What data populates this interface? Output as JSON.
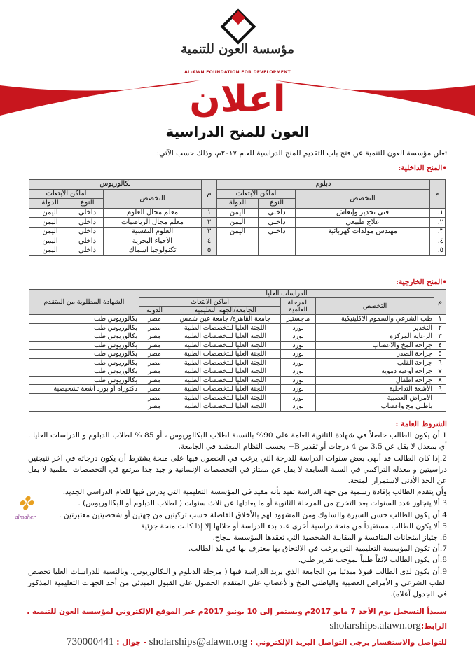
{
  "header": {
    "logo_text": "العون",
    "org_name_ar": "مؤسسة العون للتنمية",
    "org_name_en": "AL-AWN FOUNDATION FOR DEVELOPMENT",
    "title": "اعلان",
    "subtitle": "العون للمنح الدراسية",
    "brand_color": "#c8161e"
  },
  "intro": "تعلن مؤسسة العون للتنمية عن فتح باب التقديم للمنح الدراسية للعام ٢٠١٧م، وذلك حسب الآتي:",
  "domestic": {
    "heading": "•المنح الداخلية:",
    "diploma": {
      "title": "دبلوم",
      "col_m": "م",
      "col_major": "التخصص",
      "col_places": "أماكن الابتعاث",
      "col_type": "النوع",
      "col_country": "الدولة",
      "rows": [
        [
          "١.",
          "فني تخدير وإنعاش",
          "داخلي",
          "اليمن"
        ],
        [
          "٢.",
          "علاج طبيعي",
          "داخلي",
          "اليمن"
        ],
        [
          "٣.",
          "مهندس مولدات كهربائية",
          "داخلي",
          "اليمن"
        ],
        [
          "٤.",
          "",
          "",
          ""
        ],
        [
          "٥.",
          "",
          "",
          ""
        ]
      ]
    },
    "bachelor": {
      "title": "بكالوريوس",
      "col_m": "م",
      "col_major": "التخصص",
      "col_places": "أماكن الابتعاث",
      "col_type": "النوع",
      "col_country": "الدولة",
      "rows": [
        [
          "١",
          "معلم مجال العلوم",
          "داخلي",
          "اليمن"
        ],
        [
          "٢",
          "معلم مجال الرياضيات",
          "داخلي",
          "اليمن"
        ],
        [
          "٣",
          "العلوم النفسية",
          "داخلي",
          "اليمن"
        ],
        [
          "٤",
          "الأحياء البحرية",
          "داخلي",
          "اليمن"
        ],
        [
          "٥",
          "تكنولوجيا أسماك",
          "داخلي",
          "اليمن"
        ]
      ]
    }
  },
  "foreign": {
    "heading": "•المنح الخارجية:",
    "col_m": "م",
    "col_group": "الدراسات العليا",
    "col_major": "التخصص",
    "col_stage": "المرحلة العلمية",
    "col_places": "أماكن الابتعاث",
    "col_university": "الجامعة/الجهة التعليمية",
    "col_country": "الدولة",
    "col_cert": "الشهادة المطلوبة من المتقدم",
    "rows": [
      [
        "١",
        "طب الشرعي والسموم الاكلينيكية",
        "ماجستير",
        "جامعة القاهرة/ جامعة عين شمس",
        "مصر",
        "بكالوريوس طب"
      ],
      [
        "٢",
        "التخدير",
        "بورد",
        "اللجنة العليا للتخصصات الطبية",
        "مصر",
        "بكالوريوس طب"
      ],
      [
        "٣",
        "الرعاية المركزة",
        "بورد",
        "اللجنة العليا للتخصصات الطبية",
        "مصر",
        "بكالوريوس طب"
      ],
      [
        "٤",
        "جراحة المخ والاعصاب",
        "بورد",
        "اللجنة العليا للتخصصات الطبية",
        "مصر",
        "بكالوريوس طب"
      ],
      [
        "٥",
        "جراحة الصدر",
        "بورد",
        "اللجنة العليا للتخصصات الطبية",
        "مصر",
        "بكالوريوس طب"
      ],
      [
        "٦",
        "جراحة القلب",
        "بورد",
        "اللجنة العليا للتخصصات الطبية",
        "مصر",
        "بكالوريوس طب"
      ],
      [
        "٧",
        "جراحة أوعية دموية",
        "بورد",
        "اللجنة العليا للتخصصات الطبية",
        "مصر",
        "بكالوريوس طب"
      ],
      [
        "٨",
        "جراحة أطفال",
        "بورد",
        "اللجنة العليا للتخصصات الطبية",
        "مصر",
        "بكالوريوس طب"
      ],
      [
        "٩",
        "الأشعة التداخلية",
        "بورد",
        "اللجنة العليا للتخصصات الطبية",
        "مصر",
        "دكتوراه أو بورد أشعة تشخيصية"
      ],
      [
        "",
        "الأمراض العصبية",
        "بورد",
        "اللجنة العليا للتخصصات الطبية",
        "مصر",
        ""
      ],
      [
        "",
        "باطني مخ وأعصاب",
        "بورد",
        "اللجنة العليا للتخصصات الطبية",
        "مصر",
        ""
      ]
    ]
  },
  "conditions": {
    "heading": "الشروط العامة :",
    "items": [
      "1.أن يكون الطالب حاصلاً في شهادة الثانوية العامة على 90% بالنسبة لطلاب البكالوريوس ، أو 85 % لطلاب الدبلوم و الدراسات العليا . أي بمعدل لا يقل عن 3.5 من 4 درجات أو تقدير B+ بحسب النظام المعتمد في الجامعة.",
      "2.إذا كان الطالب قد أنهى بعض سنوات الدراسة للدرجة التي يرغب في الحصول فيها على منحة يشترط أن يكون درجاته في آخر نتيجتين دراسيتين و معدله التراكمي في السنة السابقة لا يقل عن ممتاز في التخصصات الإنسانية و جيد جدا مرتفع في التخصصات العلمية لا يقل عن الحد الأدنى لاستمرار المنحة.",
      "وأن يتقدم الطالب بإفادة رسمية من جهة الدراسة تفيد بأنه مقيد في المؤسسة التعليمية التي يدرس فيها للعام الدراسي الجديد.",
      "3.ألا يتجاوز عدد السنوات بعد التخرج من المرحلة الثانوية أو ما يعادلها عن ثلاث سنوات ( لطلاب الدبلوم أو البكالوريوس) .",
      "4.أن يكون الطالب حسن السيرة والسلوك ومن المشهود لهم بالأخلاق الفاضلة حسب تزكيتين من جهتين أو شخصيتين معتبرتين .",
      "5.ألا يكون الطالب مستفيداً من منحة دراسية أخرى عند بدء الدراسة أو خلالها إلا إذا كانت منحة جزئية",
      "6.اجتياز امتحانات المنافسة و المقابلة الشخصية التي تعقدها المؤسسة بنجاح.",
      "7.أن تكون المؤسسة التعليمية التي يرغب في الالتحاق بها معترف بها في بلد الطالب.",
      "8.أن يكون الطالب لائقاً طبياً بموجب تقرير طبي.",
      "9.أن يكون لدى الطالب قبولا مبدئيا من الجامعة الذي يريد الدراسة فيها ( مرحلة الدبلوم و البكالوريوس، وبالنسبة للدراسات العليا تخصص الطب الشرعي و الأمراض العصبية والباطني المخ والأعصاب على المتقدم الحصول على القبول المبدئي من أحد الجهات التعليمية المذكور في الجدول أعلاه)."
    ]
  },
  "footer": {
    "registration": "سيبدأ التسجيل يوم الأحد 7 مايو 2017م ويستمر إلى 10 يونيو 2017م عبر الموقع الإلكتروني لمؤسسة العون للتنمية .",
    "link_label": "الرابط:",
    "link": "sholarships.alawn.org",
    "contact_label": "للتواصل والاستفسار يرجى التواصل البريد الإلكتروني :",
    "email": "sholarships@alawn.org",
    "phone_label": "- جوال :",
    "phone": "730000441"
  },
  "watermark_logo": "almaher"
}
